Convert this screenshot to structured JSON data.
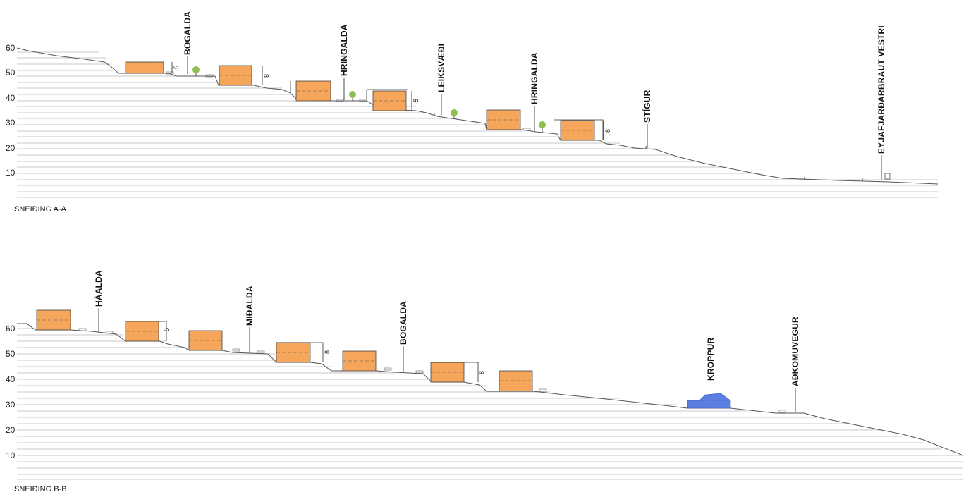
{
  "sections": [
    {
      "title": "SNEIÐING A-A",
      "y_ticks": [
        "60",
        "50",
        "40",
        "30",
        "20",
        "10"
      ],
      "labels": [
        "BOGALDA",
        "HRINGALDA",
        "LEIKSVÆÐI",
        "HRINGALDA",
        "STÍGUR",
        "EYJAFJARÐARBRAUT VESTRI"
      ],
      "dimensions": [
        "5",
        "8",
        "5",
        "8"
      ]
    },
    {
      "title": "SNEIÐING B-B",
      "y_ticks": [
        "60",
        "50",
        "40",
        "30",
        "20",
        "10"
      ],
      "labels": [
        "HÁALDA",
        "MIÐALDA",
        "BOGALDA",
        "KROPPUR",
        "AÐKOMUVEGUR"
      ],
      "dimensions": [
        "5",
        "8",
        "8"
      ]
    }
  ],
  "colors": {
    "building": "#f5a65b",
    "tree": "#8cc152",
    "rock": "#5b7fe0"
  }
}
